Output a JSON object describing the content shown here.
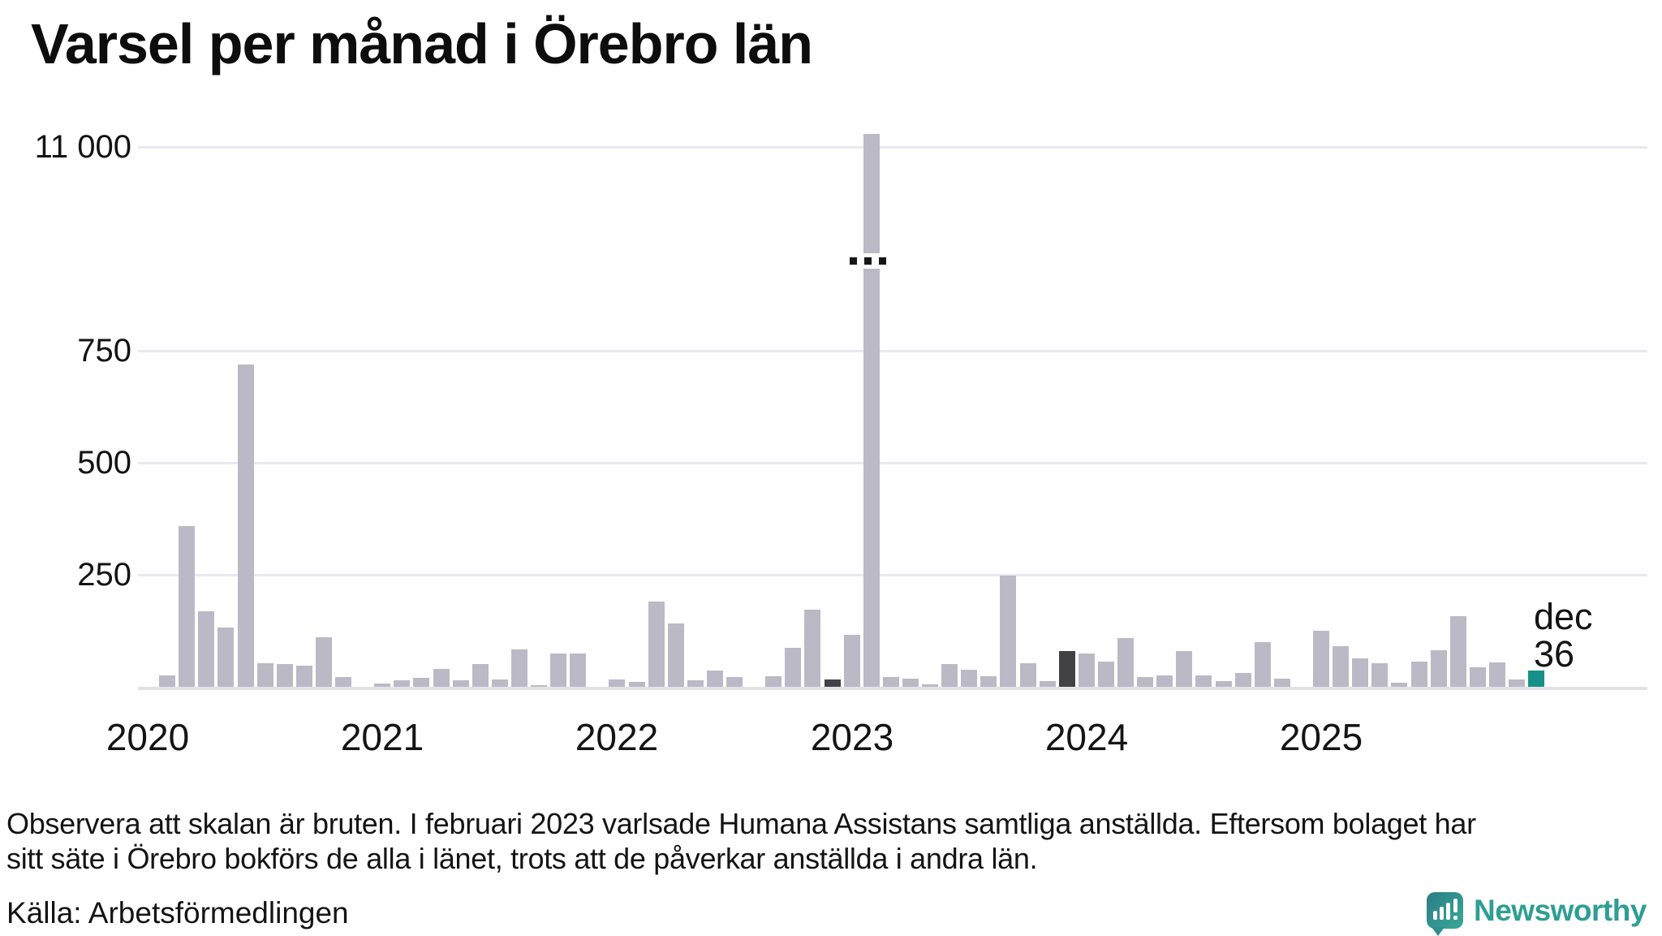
{
  "title": "Varsel per månad i Örebro län",
  "y_axis": {
    "ticks": [
      {
        "label": "11 000",
        "value": 11000,
        "above_break": true
      },
      {
        "label": "750",
        "value": 750,
        "above_break": false
      },
      {
        "label": "500",
        "value": 500,
        "above_break": false
      },
      {
        "label": "250",
        "value": 250,
        "above_break": false
      }
    ]
  },
  "x_axis": {
    "year_labels": [
      "2020",
      "2021",
      "2022",
      "2023",
      "2024",
      "2025"
    ]
  },
  "annotation": {
    "month_label": "dec",
    "value_label": "36"
  },
  "footnote_line1": "Observera att skalan är bruten. I februari 2023 varlsade Humana Assistans samtliga anställda. Eftersom bolaget har",
  "footnote_line2": "sitt säte i Örebro bokförs de alla i länet, trots att de påverkar anställda i andra län.",
  "source": "Källa: Arbetsförmedlingen",
  "logo_text": "Newsworthy",
  "colors": {
    "bar_default": "#bcb9c6",
    "bar_december": "#424245",
    "bar_current": "#16918a",
    "gridline": "#e9e8ee",
    "baseline": "#e2e1e8",
    "text": "#141414",
    "logo_teal": "#2f9e93"
  },
  "chart_data": {
    "type": "bar",
    "title": "Varsel per månad i Örebro län",
    "xlabel": "",
    "ylabel": "",
    "x_range": [
      "2020-01",
      "2025-12"
    ],
    "y_ticks": [
      250,
      500,
      750,
      11000
    ],
    "y_break": {
      "broken": true,
      "between": [
        750,
        11000
      ],
      "broken_bar_month": "2023-02"
    },
    "grid": "horizontal",
    "highlight_december_months": [
      "2022-12",
      "2023-12"
    ],
    "current_month": "2025-12",
    "annotated_month": {
      "month": "2025-12",
      "label": "dec",
      "value": 36
    },
    "months": [
      {
        "m": "2020-01",
        "v": 0
      },
      {
        "m": "2020-02",
        "v": 26
      },
      {
        "m": "2020-03",
        "v": 358
      },
      {
        "m": "2020-04",
        "v": 168
      },
      {
        "m": "2020-05",
        "v": 132
      },
      {
        "m": "2020-06",
        "v": 719
      },
      {
        "m": "2020-07",
        "v": 52
      },
      {
        "m": "2020-08",
        "v": 50
      },
      {
        "m": "2020-09",
        "v": 48
      },
      {
        "m": "2020-10",
        "v": 111
      },
      {
        "m": "2020-11",
        "v": 22
      },
      {
        "m": "2020-12",
        "v": 0
      },
      {
        "m": "2021-01",
        "v": 8
      },
      {
        "m": "2021-02",
        "v": 14
      },
      {
        "m": "2021-03",
        "v": 20
      },
      {
        "m": "2021-04",
        "v": 39
      },
      {
        "m": "2021-05",
        "v": 15
      },
      {
        "m": "2021-06",
        "v": 50
      },
      {
        "m": "2021-07",
        "v": 16
      },
      {
        "m": "2021-08",
        "v": 83
      },
      {
        "m": "2021-09",
        "v": 3
      },
      {
        "m": "2021-10",
        "v": 75
      },
      {
        "m": "2021-11",
        "v": 74
      },
      {
        "m": "2021-12",
        "v": 0
      },
      {
        "m": "2022-01",
        "v": 16
      },
      {
        "m": "2022-02",
        "v": 10
      },
      {
        "m": "2022-03",
        "v": 190
      },
      {
        "m": "2022-04",
        "v": 142
      },
      {
        "m": "2022-05",
        "v": 15
      },
      {
        "m": "2022-06",
        "v": 36
      },
      {
        "m": "2022-07",
        "v": 21
      },
      {
        "m": "2022-08",
        "v": 0
      },
      {
        "m": "2022-09",
        "v": 24
      },
      {
        "m": "2022-10",
        "v": 87
      },
      {
        "m": "2022-11",
        "v": 172
      },
      {
        "m": "2022-12",
        "v": 17,
        "style": "december"
      },
      {
        "m": "2023-01",
        "v": 116
      },
      {
        "m": "2023-02",
        "v": 11100
      },
      {
        "m": "2023-03",
        "v": 22
      },
      {
        "m": "2023-04",
        "v": 18
      },
      {
        "m": "2023-05",
        "v": 6
      },
      {
        "m": "2023-06",
        "v": 51
      },
      {
        "m": "2023-07",
        "v": 38
      },
      {
        "m": "2023-08",
        "v": 23
      },
      {
        "m": "2023-09",
        "v": 248
      },
      {
        "m": "2023-10",
        "v": 53
      },
      {
        "m": "2023-11",
        "v": 13
      },
      {
        "m": "2023-12",
        "v": 79,
        "style": "december"
      },
      {
        "m": "2024-01",
        "v": 74
      },
      {
        "m": "2024-02",
        "v": 56
      },
      {
        "m": "2024-03",
        "v": 109
      },
      {
        "m": "2024-04",
        "v": 21
      },
      {
        "m": "2024-05",
        "v": 25
      },
      {
        "m": "2024-06",
        "v": 80
      },
      {
        "m": "2024-07",
        "v": 25
      },
      {
        "m": "2024-08",
        "v": 13
      },
      {
        "m": "2024-09",
        "v": 31
      },
      {
        "m": "2024-10",
        "v": 100
      },
      {
        "m": "2024-11",
        "v": 19
      },
      {
        "m": "2024-12",
        "v": 0
      },
      {
        "m": "2025-01",
        "v": 125
      },
      {
        "m": "2025-02",
        "v": 91
      },
      {
        "m": "2025-03",
        "v": 64
      },
      {
        "m": "2025-04",
        "v": 53
      },
      {
        "m": "2025-05",
        "v": 9
      },
      {
        "m": "2025-06",
        "v": 57
      },
      {
        "m": "2025-07",
        "v": 82
      },
      {
        "m": "2025-08",
        "v": 158
      },
      {
        "m": "2025-09",
        "v": 43
      },
      {
        "m": "2025-10",
        "v": 54
      },
      {
        "m": "2025-11",
        "v": 17
      },
      {
        "m": "2025-12",
        "v": 36,
        "style": "current"
      }
    ]
  }
}
